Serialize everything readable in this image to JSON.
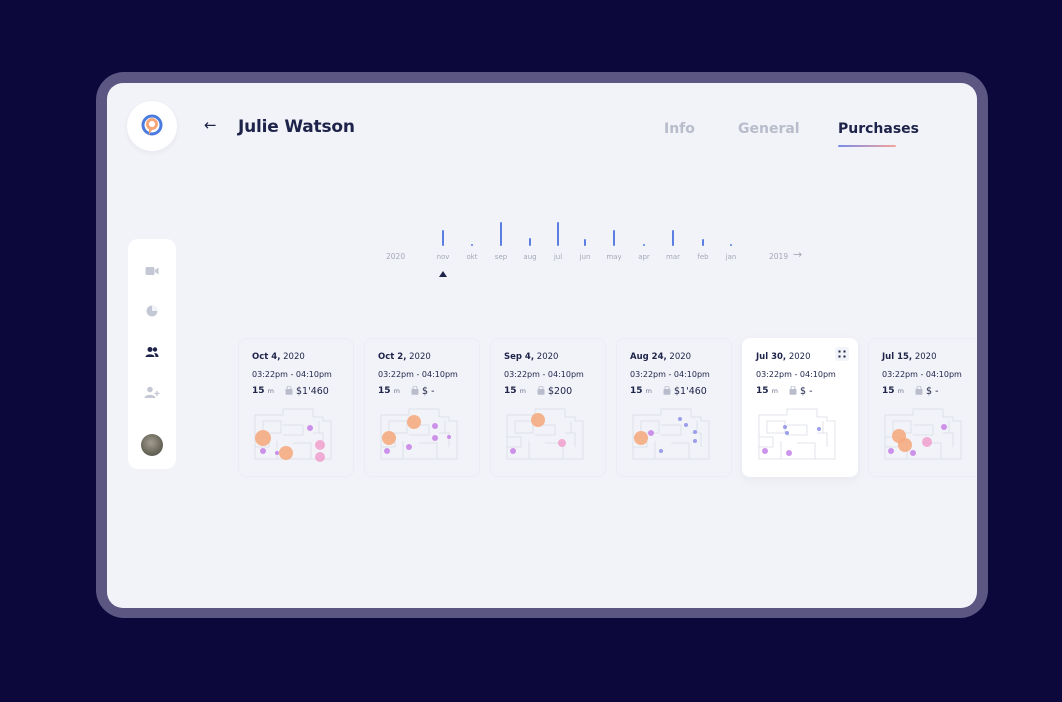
{
  "header": {
    "back_label": "←",
    "title": "Julie Watson"
  },
  "tabs": [
    {
      "label": "Info",
      "active": false
    },
    {
      "label": "General",
      "active": false
    },
    {
      "label": "Purchases",
      "active": true
    }
  ],
  "colors": {
    "background": "#0d083b",
    "accent": "#5b7fe0",
    "text": "#1d2349",
    "hotspot": "#f6a77a",
    "marker": "#c680e6"
  },
  "sidebar": {
    "items": [
      {
        "icon": "video-camera-icon",
        "active": false
      },
      {
        "icon": "pie-chart-icon",
        "active": false
      },
      {
        "icon": "users-icon",
        "active": true
      },
      {
        "icon": "add-user-icon",
        "active": false
      }
    ],
    "avatar": "user-avatar"
  },
  "timeline": {
    "start_year": "2020",
    "end_year": "2019",
    "months": [
      {
        "label": "nov",
        "value": 0.65,
        "selected": true
      },
      {
        "label": "okt",
        "value": 0.1
      },
      {
        "label": "sep",
        "value": 1.0
      },
      {
        "label": "aug",
        "value": 0.35
      },
      {
        "label": "jul",
        "value": 1.0
      },
      {
        "label": "jun",
        "value": 0.3
      },
      {
        "label": "may",
        "value": 0.65
      },
      {
        "label": "apr",
        "value": 0.1
      },
      {
        "label": "mar",
        "value": 0.65
      },
      {
        "label": "feb",
        "value": 0.3
      },
      {
        "label": "jan",
        "value": 0.1
      }
    ]
  },
  "purchases": [
    {
      "date_bold": "Oct 4,",
      "year": " 2020",
      "time": "03:22pm - 04:10pm",
      "duration": "15",
      "unit": "m",
      "price": "$1'460",
      "selected": false
    },
    {
      "date_bold": "Oct 2,",
      "year": " 2020",
      "time": "03:22pm - 04:10pm",
      "duration": "15",
      "unit": "m",
      "price": "$ -",
      "selected": false
    },
    {
      "date_bold": "Sep 4,",
      "year": " 2020",
      "time": "03:22pm - 04:10pm",
      "duration": "15",
      "unit": "m",
      "price": "$200",
      "selected": false
    },
    {
      "date_bold": "Aug 24,",
      "year": " 2020",
      "time": "03:22pm - 04:10pm",
      "duration": "15",
      "unit": "m",
      "price": "$1'460",
      "selected": false
    },
    {
      "date_bold": "Jul 30,",
      "year": " 2020",
      "time": "03:22pm - 04:10pm",
      "duration": "15",
      "unit": "m",
      "price": "$ -",
      "selected": true
    },
    {
      "date_bold": "Jul 15,",
      "year": " 2020",
      "time": "03:22pm - 04:10pm",
      "duration": "15",
      "unit": "m",
      "price": "$ -",
      "selected": false
    }
  ]
}
